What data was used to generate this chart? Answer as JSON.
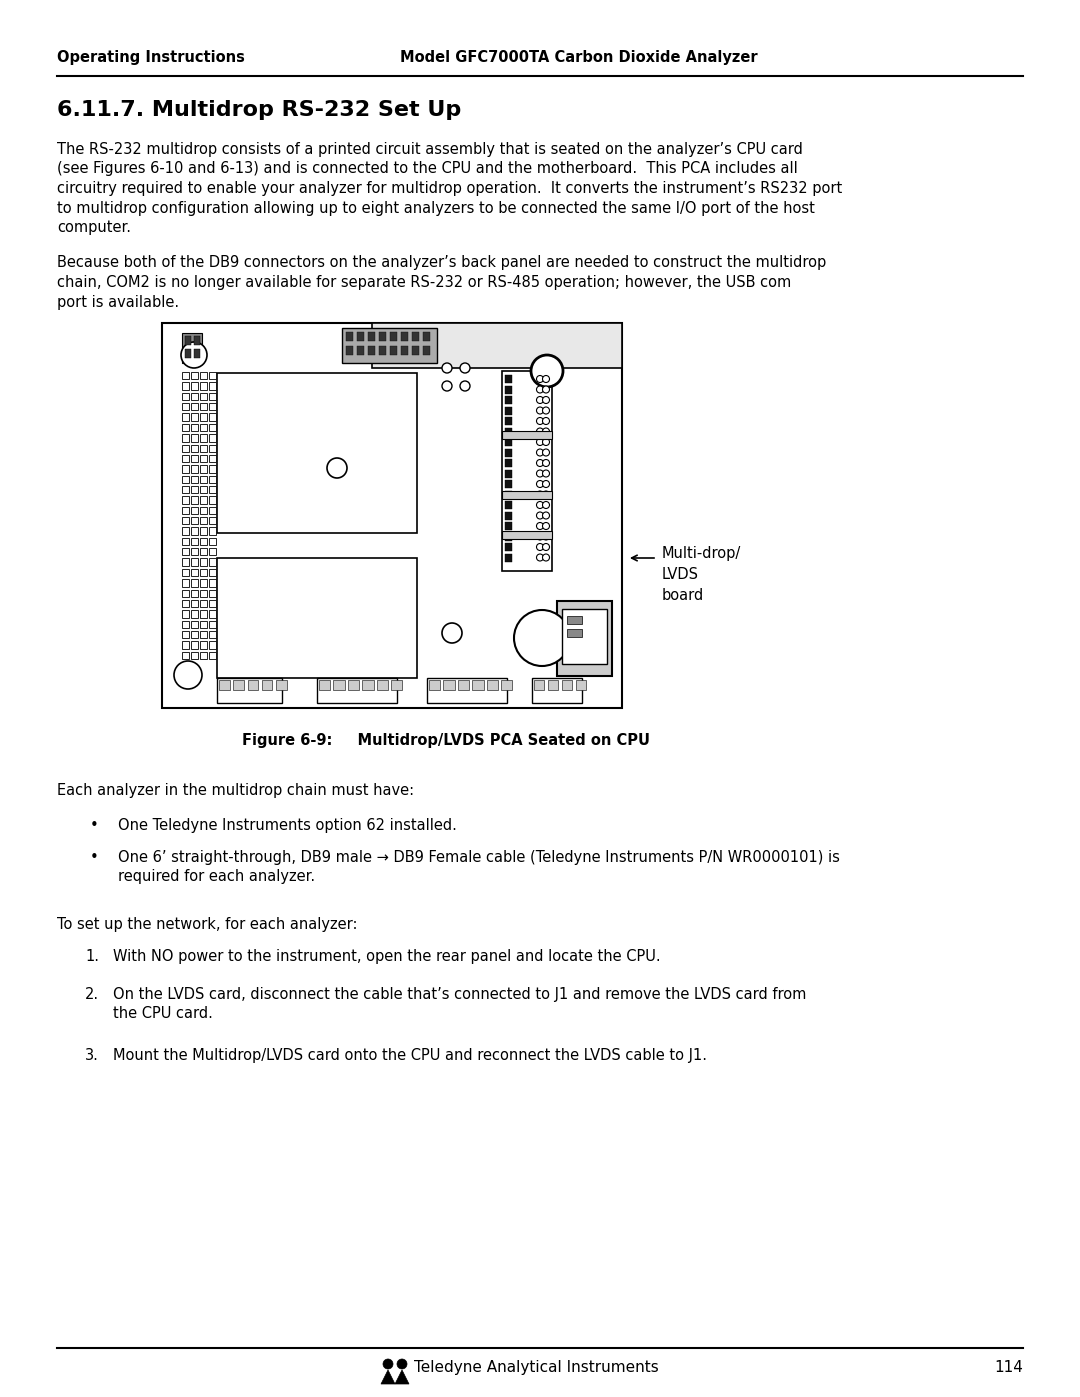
{
  "header_left": "Operating Instructions",
  "header_right": "Model GFC7000TA Carbon Dioxide Analyzer",
  "section_title": "6.11.7. Multidrop RS-232 Set Up",
  "para1_lines": [
    "The RS-232 multidrop consists of a printed circuit assembly that is seated on the analyzer’s CPU card",
    "(see Figures 6-10 and 6-13) and is connected to the CPU and the motherboard.  This PCA includes all",
    "circuitry required to enable your analyzer for multidrop operation.  It converts the instrument’s RS232 port",
    "to multidrop configuration allowing up to eight analyzers to be connected the same I/O port of the host",
    "computer."
  ],
  "para2_lines": [
    "Because both of the DB9 connectors on the analyzer’s back panel are needed to construct the multidrop",
    "chain, COM2 is no longer available for separate RS-232 or RS-485 operation; however, the USB com",
    "port is available."
  ],
  "figure_caption_label": "Figure 6-9:",
  "figure_caption_rest": "    Multidrop/LVDS PCA Seated on CPU",
  "label_multidrop": "Multi-drop/\nLVDS\nboard",
  "para3": "Each analyzer in the multidrop chain must have:",
  "bullet1": "One Teledyne Instruments option 62 installed.",
  "bullet2_lines": [
    "One 6’ straight-through, DB9 male → DB9 Female cable (Teledyne Instruments P/N WR0000101) is",
    "required for each analyzer."
  ],
  "para4": "To set up the network, for each analyzer:",
  "step1": "With NO power to the instrument, open the rear panel and locate the CPU.",
  "step2_lines": [
    "On the LVDS card, disconnect the cable that’s connected to J1 and remove the LVDS card from",
    "the CPU card."
  ],
  "step3": "Mount the Multidrop/LVDS card onto the CPU and reconnect the LVDS cable to J1.",
  "footer_text": "Teledyne Analytical Instruments",
  "footer_page": "114",
  "bg_color": "#ffffff",
  "text_color": "#000000"
}
